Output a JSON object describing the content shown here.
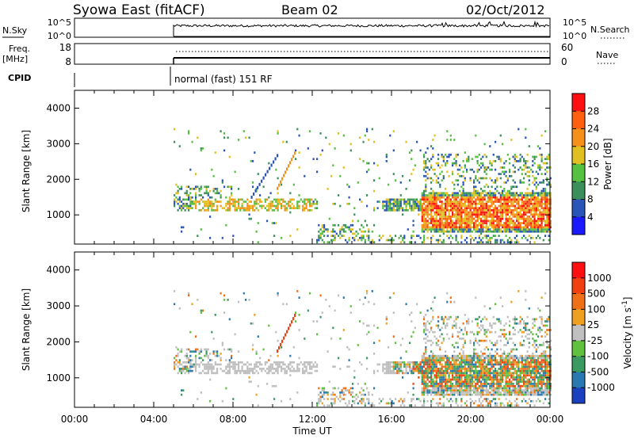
{
  "header": {
    "station": "Syowa East (fitACF)",
    "beam": "Beam 02",
    "date": "02/Oct/2012"
  },
  "strips": {
    "nsky": {
      "label": "N.Sky",
      "right_label": "N.Search",
      "left_ticks": [
        "10^5",
        "10^0"
      ],
      "right_ticks": [
        "10^5",
        "10^0"
      ]
    },
    "freq": {
      "label": "Freq.",
      "unit": "[MHz]",
      "right_label": "Nave",
      "left_ticks": [
        "18",
        "8"
      ],
      "right_ticks": [
        "60",
        "0"
      ]
    },
    "cpid": {
      "label": "CPID",
      "mode": "normal (fast) 151 RF"
    }
  },
  "chart_data": [
    {
      "type": "heatmap",
      "quantity": "Power",
      "ylabel": "Slant Range [km]",
      "ylim": [
        180,
        4500
      ],
      "yticks": [
        "1000",
        "2000",
        "3000",
        "4000"
      ],
      "data_start_hour": 5.0,
      "colorbar": {
        "label": "Power [dB]",
        "ticks": [
          "4",
          "8",
          "12",
          "16",
          "20",
          "24",
          "28"
        ],
        "colors": [
          "#1a1aff",
          "#2a55b8",
          "#3a8f5a",
          "#56c040",
          "#e0c020",
          "#f59018",
          "#ff6010",
          "#ff1010"
        ]
      }
    },
    {
      "type": "heatmap",
      "quantity": "Velocity",
      "ylabel": "Slant Range [km]",
      "ylim": [
        180,
        4500
      ],
      "yticks": [
        "1000",
        "2000",
        "3000",
        "4000"
      ],
      "xlabel": "Time UT",
      "xticks": [
        "00:00",
        "04:00",
        "08:00",
        "12:00",
        "16:00",
        "20:00",
        "00:00"
      ],
      "xlim_hours": [
        0,
        24
      ],
      "colorbar": {
        "label": "Velocity [m s^-1]",
        "ticks": [
          "1000",
          "500",
          "100",
          "25",
          "-25",
          "-100",
          "-500",
          "-1000"
        ],
        "colors": [
          "#1a3fbf",
          "#2a78b0",
          "#3a9a60",
          "#60c040",
          "#c0c0c0",
          "#f0a020",
          "#f07018",
          "#f04010",
          "#ff1010"
        ]
      }
    }
  ],
  "colors": {
    "axis": "#000000",
    "ground_scatter": "#bebebe"
  }
}
